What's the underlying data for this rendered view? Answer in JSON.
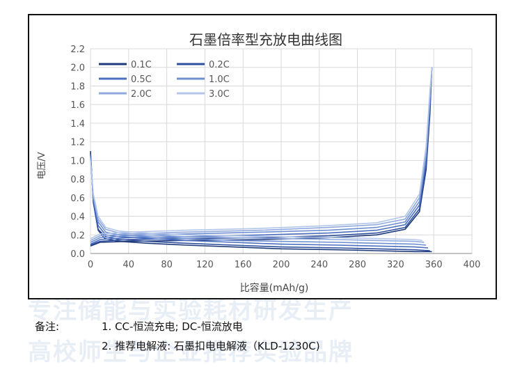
{
  "watermark": {
    "line1": "专注储能与实验耗材研发生产",
    "line2": "高校师生与企业推荐实验品牌"
  },
  "notes": {
    "label": "备注:",
    "line1": "1. CC-恒流充电; DC-恒流放电",
    "line2": "2. 推荐电解液: 石墨扣电电解液（KLD-1230C)"
  },
  "colors": {
    "grid": "#d9d9d9",
    "axis": "#888888",
    "text": "#555555",
    "title": "#333333"
  },
  "chart_data": {
    "type": "line",
    "title": "石墨倍率型充放电曲线图",
    "xlabel": "比容量(mAh/g)",
    "ylabel": "电压/V",
    "xlim": [
      0,
      400
    ],
    "ylim": [
      0,
      2.2
    ],
    "xticks": [
      0,
      40,
      80,
      120,
      160,
      200,
      240,
      280,
      320,
      360,
      400
    ],
    "yticks": [
      0.0,
      0.2,
      0.4,
      0.6,
      0.8,
      1.0,
      1.2,
      1.4,
      1.6,
      1.8,
      2.0,
      2.2
    ],
    "grid": true,
    "legend_position": "top-left",
    "series": [
      {
        "name": "0.1C",
        "color": "#1f3a7a",
        "discharge": [
          [
            0,
            1.1
          ],
          [
            3,
            0.55
          ],
          [
            8,
            0.25
          ],
          [
            15,
            0.16
          ],
          [
            30,
            0.13
          ],
          [
            60,
            0.11
          ],
          [
            100,
            0.09
          ],
          [
            150,
            0.07
          ],
          [
            200,
            0.05
          ],
          [
            260,
            0.04
          ],
          [
            300,
            0.03
          ],
          [
            340,
            0.02
          ],
          [
            358,
            0.02
          ]
        ],
        "charge": [
          [
            0,
            0.08
          ],
          [
            10,
            0.12
          ],
          [
            40,
            0.13
          ],
          [
            100,
            0.14
          ],
          [
            180,
            0.15
          ],
          [
            250,
            0.17
          ],
          [
            300,
            0.2
          ],
          [
            330,
            0.26
          ],
          [
            345,
            0.45
          ],
          [
            352,
            0.9
          ],
          [
            356,
            1.5
          ],
          [
            358,
            2.0
          ]
        ]
      },
      {
        "name": "0.2C",
        "color": "#2e4f9e",
        "discharge": [
          [
            0,
            1.08
          ],
          [
            3,
            0.55
          ],
          [
            8,
            0.26
          ],
          [
            16,
            0.18
          ],
          [
            30,
            0.15
          ],
          [
            60,
            0.13
          ],
          [
            100,
            0.11
          ],
          [
            150,
            0.09
          ],
          [
            200,
            0.07
          ],
          [
            260,
            0.06
          ],
          [
            300,
            0.05
          ],
          [
            340,
            0.04
          ],
          [
            356,
            0.03
          ]
        ],
        "charge": [
          [
            0,
            0.09
          ],
          [
            10,
            0.13
          ],
          [
            40,
            0.15
          ],
          [
            100,
            0.16
          ],
          [
            180,
            0.17
          ],
          [
            250,
            0.19
          ],
          [
            300,
            0.22
          ],
          [
            330,
            0.28
          ],
          [
            345,
            0.48
          ],
          [
            352,
            0.95
          ],
          [
            356,
            1.55
          ],
          [
            358,
            2.0
          ]
        ]
      },
      {
        "name": "0.5C",
        "color": "#4a6fc0",
        "discharge": [
          [
            0,
            1.06
          ],
          [
            3,
            0.58
          ],
          [
            8,
            0.3
          ],
          [
            16,
            0.2
          ],
          [
            30,
            0.18
          ],
          [
            60,
            0.16
          ],
          [
            100,
            0.14
          ],
          [
            150,
            0.12
          ],
          [
            200,
            0.1
          ],
          [
            260,
            0.09
          ],
          [
            300,
            0.08
          ],
          [
            340,
            0.07
          ],
          [
            354,
            0.06
          ]
        ],
        "charge": [
          [
            0,
            0.1
          ],
          [
            10,
            0.15
          ],
          [
            40,
            0.17
          ],
          [
            100,
            0.18
          ],
          [
            180,
            0.2
          ],
          [
            250,
            0.22
          ],
          [
            300,
            0.25
          ],
          [
            330,
            0.31
          ],
          [
            345,
            0.52
          ],
          [
            352,
            1.0
          ],
          [
            356,
            1.6
          ],
          [
            358,
            2.0
          ]
        ]
      },
      {
        "name": "1.0C",
        "color": "#6d8fd2",
        "discharge": [
          [
            0,
            1.04
          ],
          [
            3,
            0.6
          ],
          [
            8,
            0.34
          ],
          [
            16,
            0.23
          ],
          [
            30,
            0.2
          ],
          [
            60,
            0.18
          ],
          [
            100,
            0.16
          ],
          [
            150,
            0.14
          ],
          [
            200,
            0.13
          ],
          [
            260,
            0.12
          ],
          [
            300,
            0.11
          ],
          [
            340,
            0.1
          ],
          [
            352,
            0.09
          ]
        ],
        "charge": [
          [
            0,
            0.12
          ],
          [
            10,
            0.17
          ],
          [
            40,
            0.19
          ],
          [
            100,
            0.21
          ],
          [
            180,
            0.23
          ],
          [
            250,
            0.25
          ],
          [
            300,
            0.28
          ],
          [
            330,
            0.34
          ],
          [
            345,
            0.56
          ],
          [
            352,
            1.05
          ],
          [
            356,
            1.65
          ],
          [
            358,
            2.0
          ]
        ]
      },
      {
        "name": "2.0C",
        "color": "#8fa9de",
        "discharge": [
          [
            0,
            1.02
          ],
          [
            3,
            0.62
          ],
          [
            8,
            0.37
          ],
          [
            16,
            0.26
          ],
          [
            30,
            0.22
          ],
          [
            60,
            0.2
          ],
          [
            100,
            0.18
          ],
          [
            150,
            0.17
          ],
          [
            200,
            0.16
          ],
          [
            260,
            0.15
          ],
          [
            300,
            0.14
          ],
          [
            340,
            0.13
          ],
          [
            350,
            0.12
          ]
        ],
        "charge": [
          [
            0,
            0.14
          ],
          [
            10,
            0.19
          ],
          [
            40,
            0.21
          ],
          [
            100,
            0.23
          ],
          [
            180,
            0.25
          ],
          [
            250,
            0.28
          ],
          [
            300,
            0.31
          ],
          [
            330,
            0.37
          ],
          [
            345,
            0.6
          ],
          [
            352,
            1.1
          ],
          [
            356,
            1.7
          ],
          [
            358,
            2.0
          ]
        ]
      },
      {
        "name": "3.0C",
        "color": "#b3c6ea",
        "discharge": [
          [
            0,
            1.0
          ],
          [
            3,
            0.64
          ],
          [
            8,
            0.4
          ],
          [
            16,
            0.28
          ],
          [
            30,
            0.24
          ],
          [
            60,
            0.22
          ],
          [
            100,
            0.2
          ],
          [
            150,
            0.19
          ],
          [
            200,
            0.18
          ],
          [
            260,
            0.17
          ],
          [
            300,
            0.16
          ],
          [
            340,
            0.15
          ],
          [
            348,
            0.14
          ]
        ],
        "charge": [
          [
            0,
            0.16
          ],
          [
            10,
            0.21
          ],
          [
            40,
            0.23
          ],
          [
            100,
            0.25
          ],
          [
            180,
            0.27
          ],
          [
            250,
            0.3
          ],
          [
            300,
            0.33
          ],
          [
            330,
            0.4
          ],
          [
            345,
            0.64
          ],
          [
            352,
            1.15
          ],
          [
            356,
            1.75
          ],
          [
            358,
            2.0
          ]
        ]
      }
    ]
  }
}
